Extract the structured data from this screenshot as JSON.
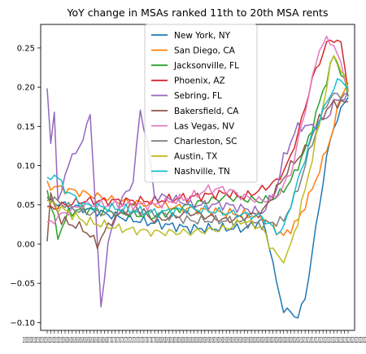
{
  "chart_data": {
    "type": "line",
    "title": "YoY change in MSAs ranked 11th to 20th MSA rents",
    "xlabel": "",
    "ylabel": "",
    "ylim": [
      -0.11,
      0.28
    ],
    "yticks": [
      -0.1,
      -0.05,
      0.0,
      0.05,
      0.1,
      0.15,
      0.2,
      0.25
    ],
    "ytick_labels": [
      "−0.10",
      "−0.05",
      "0.00",
      "0.05",
      "0.10",
      "0.15",
      "0.20",
      "0.25"
    ],
    "x_points": 85,
    "x_tick_text": "201520152015201520152015201520152015201520162016201620162016201620162016201620162016201720172017201720172017201720172017201720172017201820182018201820182018201820182018201820182018201920192019201920192019201920192019201920192019202020202020202020202020202020202020202020202020202120212021202120212021202120212022202220222022202220222022202220222022",
    "legend_position": "top-center",
    "grid": false,
    "series": [
      {
        "name": "New York, NY",
        "color": "#1f77b4",
        "anchors": [
          [
            0,
            0.055
          ],
          [
            10,
            0.045
          ],
          [
            25,
            0.03
          ],
          [
            40,
            0.02
          ],
          [
            55,
            0.02
          ],
          [
            60,
            0.03
          ],
          [
            62,
            0.0
          ],
          [
            64,
            -0.05
          ],
          [
            66,
            -0.083
          ],
          [
            68,
            -0.088
          ],
          [
            70,
            -0.092
          ],
          [
            72,
            -0.07
          ],
          [
            74,
            -0.01
          ],
          [
            76,
            0.05
          ],
          [
            78,
            0.11
          ],
          [
            80,
            0.15
          ],
          [
            82,
            0.17
          ],
          [
            84,
            0.19
          ]
        ]
      },
      {
        "name": "San Diego, CA",
        "color": "#ff7f0e",
        "anchors": [
          [
            0,
            0.075
          ],
          [
            10,
            0.065
          ],
          [
            20,
            0.055
          ],
          [
            30,
            0.05
          ],
          [
            40,
            0.045
          ],
          [
            50,
            0.04
          ],
          [
            60,
            0.035
          ],
          [
            66,
            0.01
          ],
          [
            70,
            0.03
          ],
          [
            74,
            0.07
          ],
          [
            78,
            0.12
          ],
          [
            80,
            0.15
          ],
          [
            82,
            0.19
          ],
          [
            84,
            0.205
          ]
        ]
      },
      {
        "name": "Jacksonville, FL",
        "color": "#2ca02c",
        "anchors": [
          [
            0,
            0.07
          ],
          [
            3,
            0.01
          ],
          [
            6,
            0.04
          ],
          [
            10,
            0.045
          ],
          [
            20,
            0.04
          ],
          [
            30,
            0.035
          ],
          [
            40,
            0.05
          ],
          [
            50,
            0.06
          ],
          [
            60,
            0.055
          ],
          [
            64,
            0.06
          ],
          [
            68,
            0.08
          ],
          [
            72,
            0.12
          ],
          [
            76,
            0.18
          ],
          [
            80,
            0.24
          ],
          [
            82,
            0.22
          ],
          [
            84,
            0.19
          ]
        ]
      },
      {
        "name": "Phoenix, AZ",
        "color": "#d62728",
        "anchors": [
          [
            0,
            0.045
          ],
          [
            10,
            0.055
          ],
          [
            20,
            0.055
          ],
          [
            30,
            0.055
          ],
          [
            40,
            0.06
          ],
          [
            50,
            0.065
          ],
          [
            55,
            0.06
          ],
          [
            60,
            0.07
          ],
          [
            64,
            0.08
          ],
          [
            67,
            0.1
          ],
          [
            70,
            0.14
          ],
          [
            74,
            0.21
          ],
          [
            78,
            0.255
          ],
          [
            80,
            0.262
          ],
          [
            82,
            0.255
          ],
          [
            84,
            0.2
          ]
        ]
      },
      {
        "name": "Sebring, FL",
        "color": "#9467bd",
        "anchors": [
          [
            0,
            0.2
          ],
          [
            1,
            0.13
          ],
          [
            2,
            0.17
          ],
          [
            3,
            0.05
          ],
          [
            5,
            0.09
          ],
          [
            8,
            0.12
          ],
          [
            10,
            0.13
          ],
          [
            12,
            0.17
          ],
          [
            14,
            0.0
          ],
          [
            15,
            -0.08
          ],
          [
            17,
            0.0
          ],
          [
            20,
            0.05
          ],
          [
            24,
            0.08
          ],
          [
            26,
            0.17
          ],
          [
            28,
            0.13
          ],
          [
            30,
            0.06
          ],
          [
            34,
            0.06
          ],
          [
            40,
            0.05
          ],
          [
            50,
            0.05
          ],
          [
            60,
            0.04
          ],
          [
            64,
            0.07
          ],
          [
            66,
            0.11
          ],
          [
            70,
            0.15
          ],
          [
            74,
            0.15
          ],
          [
            78,
            0.16
          ],
          [
            80,
            0.18
          ],
          [
            84,
            0.19
          ]
        ]
      },
      {
        "name": "Bakersfield, CA",
        "color": "#8c564b",
        "anchors": [
          [
            0,
            0.01
          ],
          [
            1,
            0.06
          ],
          [
            4,
            0.03
          ],
          [
            10,
            0.02
          ],
          [
            14,
            0.0
          ],
          [
            18,
            0.03
          ],
          [
            24,
            0.05
          ],
          [
            30,
            0.03
          ],
          [
            40,
            0.04
          ],
          [
            50,
            0.03
          ],
          [
            60,
            0.04
          ],
          [
            64,
            0.07
          ],
          [
            68,
            0.1
          ],
          [
            72,
            0.12
          ],
          [
            76,
            0.16
          ],
          [
            80,
            0.18
          ],
          [
            84,
            0.18
          ]
        ]
      },
      {
        "name": "Las Vegas, NV",
        "color": "#e377c2",
        "anchors": [
          [
            0,
            0.025
          ],
          [
            5,
            0.04
          ],
          [
            10,
            0.05
          ],
          [
            20,
            0.05
          ],
          [
            30,
            0.05
          ],
          [
            40,
            0.06
          ],
          [
            45,
            0.07
          ],
          [
            50,
            0.07
          ],
          [
            55,
            0.06
          ],
          [
            60,
            0.055
          ],
          [
            64,
            0.06
          ],
          [
            68,
            0.09
          ],
          [
            72,
            0.17
          ],
          [
            76,
            0.25
          ],
          [
            78,
            0.26
          ],
          [
            80,
            0.255
          ],
          [
            84,
            0.2
          ]
        ]
      },
      {
        "name": "Charleston, SC",
        "color": "#7f7f7f",
        "anchors": [
          [
            0,
            0.06
          ],
          [
            10,
            0.04
          ],
          [
            20,
            0.04
          ],
          [
            30,
            0.04
          ],
          [
            40,
            0.03
          ],
          [
            50,
            0.03
          ],
          [
            60,
            0.025
          ],
          [
            66,
            0.03
          ],
          [
            70,
            0.07
          ],
          [
            74,
            0.13
          ],
          [
            78,
            0.18
          ],
          [
            80,
            0.19
          ],
          [
            84,
            0.19
          ]
        ]
      },
      {
        "name": "Austin, TX",
        "color": "#bcbd22",
        "anchors": [
          [
            0,
            0.055
          ],
          [
            10,
            0.03
          ],
          [
            20,
            0.02
          ],
          [
            30,
            0.015
          ],
          [
            40,
            0.015
          ],
          [
            50,
            0.02
          ],
          [
            55,
            0.03
          ],
          [
            60,
            0.02
          ],
          [
            62,
            0.0
          ],
          [
            65,
            -0.02
          ],
          [
            67,
            -0.015
          ],
          [
            70,
            0.03
          ],
          [
            74,
            0.11
          ],
          [
            78,
            0.2
          ],
          [
            80,
            0.245
          ],
          [
            82,
            0.22
          ],
          [
            84,
            0.2
          ]
        ]
      },
      {
        "name": "Nashville, TN",
        "color": "#17becf",
        "anchors": [
          [
            0,
            0.08
          ],
          [
            2,
            0.09
          ],
          [
            5,
            0.07
          ],
          [
            10,
            0.05
          ],
          [
            20,
            0.045
          ],
          [
            30,
            0.04
          ],
          [
            40,
            0.045
          ],
          [
            50,
            0.04
          ],
          [
            60,
            0.035
          ],
          [
            64,
            0.015
          ],
          [
            66,
            0.02
          ],
          [
            70,
            0.08
          ],
          [
            74,
            0.14
          ],
          [
            78,
            0.18
          ],
          [
            80,
            0.2
          ],
          [
            82,
            0.21
          ],
          [
            84,
            0.2
          ]
        ]
      }
    ]
  }
}
